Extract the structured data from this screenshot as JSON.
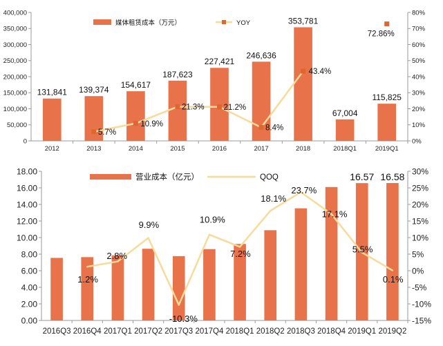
{
  "chart_data": [
    {
      "type": "bar",
      "categories": [
        "2012",
        "2013",
        "2014",
        "2015",
        "2016",
        "2017",
        "2018",
        "2018Q1",
        "2019Q1"
      ],
      "series": [
        {
          "name": "媒体租赁成本（万元）",
          "axis": "left",
          "values": [
            131841,
            139374,
            154617,
            187623,
            227421,
            246636,
            353781,
            67004,
            115825
          ],
          "data_labels": [
            "131,841",
            "139,374",
            "154,617",
            "187,623",
            "227,421",
            "246,636",
            "353,781",
            "67,004",
            "115,825"
          ]
        },
        {
          "name": "YOY",
          "type": "line",
          "axis": "right",
          "values": [
            null,
            5.7,
            10.9,
            21.3,
            21.2,
            8.4,
            43.4,
            null,
            72.86
          ],
          "data_labels": [
            "",
            "5.7%",
            "10.9%",
            "21.3%",
            "21.2%",
            "8.4%",
            "43.4%",
            "",
            "72.86%"
          ]
        }
      ],
      "y_left": {
        "min": 0,
        "max": 400000,
        "step": 50000,
        "tick_labels": [
          "0",
          "50,000",
          "100,000",
          "150,000",
          "200,000",
          "250,000",
          "300,000",
          "350,000",
          "400,000"
        ]
      },
      "y_right": {
        "min": 0,
        "max": 80,
        "step": 10,
        "tick_labels": [
          "0%",
          "10%",
          "20%",
          "30%",
          "40%",
          "50%",
          "60%",
          "70%",
          "80%"
        ]
      },
      "legend_position": "top",
      "grid": false,
      "colors": {
        "bar": "#E8724A",
        "line": "#F6DB9A",
        "marker": "#E0662F"
      }
    },
    {
      "type": "bar",
      "categories": [
        "2016Q3",
        "2016Q4",
        "2017Q1",
        "2017Q2",
        "2017Q3",
        "2017Q4",
        "2018Q1",
        "2018Q2",
        "2018Q3",
        "2018Q4",
        "2019Q1",
        "2019Q2"
      ],
      "series": [
        {
          "name": "营业成本（亿元）",
          "axis": "left",
          "values": [
            7.55,
            7.64,
            7.85,
            8.65,
            7.76,
            8.61,
            9.23,
            10.89,
            13.53,
            16.1,
            16.57,
            16.58
          ],
          "data_labels": [
            "",
            "",
            "",
            "",
            "",
            "",
            "",
            "",
            "",
            "",
            "16.57",
            "16.58"
          ]
        },
        {
          "name": "QOQ",
          "type": "line",
          "axis": "right",
          "values": [
            null,
            1.2,
            2.8,
            9.9,
            -10.3,
            10.9,
            7.2,
            18.1,
            23.7,
            17.1,
            5.5,
            0.1
          ],
          "data_labels": [
            "",
            "1.2%",
            "2.8%",
            "9.9%",
            "-10.3%",
            "10.9%",
            "7.2%",
            "18.1%",
            "23.7%",
            "17.1%",
            "5.5%",
            "0.1%"
          ]
        }
      ],
      "y_left": {
        "min": 0,
        "max": 18,
        "step": 2,
        "tick_labels": [
          "0.00",
          "2.00",
          "4.00",
          "6.00",
          "8.00",
          "10.00",
          "12.00",
          "14.00",
          "16.00",
          "18.00"
        ]
      },
      "y_right": {
        "min": -15,
        "max": 30,
        "step": 5,
        "tick_labels": [
          "-15%",
          "-10%",
          "-5%",
          "0%",
          "5%",
          "10%",
          "15%",
          "20%",
          "25%",
          "30%"
        ]
      },
      "legend_position": "top",
      "grid": false,
      "colors": {
        "bar": "#E8724A",
        "line": "#F6DB9A"
      }
    }
  ]
}
